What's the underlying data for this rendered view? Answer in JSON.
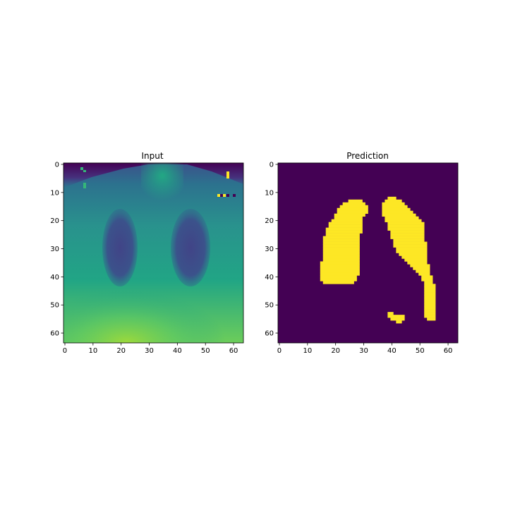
{
  "chart_data": [
    {
      "type": "heatmap",
      "title": "Input",
      "colormap": "viridis",
      "x_ticks": [
        0,
        10,
        20,
        30,
        40,
        50,
        60
      ],
      "y_ticks": [
        0,
        10,
        20,
        30,
        40,
        50,
        60
      ],
      "xlim": [
        -0.5,
        63.5
      ],
      "ylim": [
        63.5,
        -0.5
      ],
      "grid": false,
      "description_values": "64x64 grayscale chest X-ray intensity image rendered with viridis colormap"
    },
    {
      "type": "heatmap",
      "title": "Prediction",
      "colormap": "viridis",
      "x_ticks": [
        0,
        10,
        20,
        30,
        40,
        50,
        60
      ],
      "y_ticks": [
        0,
        10,
        20,
        30,
        40,
        50,
        60
      ],
      "xlim": [
        -0.5,
        63.5
      ],
      "ylim": [
        63.5,
        -0.5
      ],
      "grid": false,
      "mask_colors": {
        "background": "#440154",
        "foreground": "#fde725"
      },
      "regions": [
        {
          "name": "left-lung",
          "rows": [
            [
              13,
              25,
              29
            ],
            [
              14,
              23,
              30
            ],
            [
              15,
              22,
              31
            ],
            [
              16,
              21,
              31
            ],
            [
              17,
              21,
              31
            ],
            [
              18,
              20,
              30
            ],
            [
              19,
              20,
              29
            ],
            [
              20,
              19,
              29
            ],
            [
              21,
              18,
              29
            ],
            [
              22,
              18,
              29
            ],
            [
              23,
              17,
              29
            ],
            [
              24,
              17,
              29
            ],
            [
              25,
              17,
              28
            ],
            [
              26,
              16,
              28
            ],
            [
              27,
              16,
              28
            ],
            [
              28,
              16,
              28
            ],
            [
              29,
              16,
              28
            ],
            [
              30,
              16,
              28
            ],
            [
              31,
              16,
              28
            ],
            [
              32,
              16,
              28
            ],
            [
              33,
              16,
              28
            ],
            [
              34,
              16,
              28
            ],
            [
              35,
              15,
              28
            ],
            [
              36,
              15,
              28
            ],
            [
              37,
              15,
              28
            ],
            [
              38,
              15,
              28
            ],
            [
              39,
              15,
              28
            ],
            [
              40,
              15,
              27
            ],
            [
              41,
              15,
              27
            ],
            [
              42,
              16,
              26
            ]
          ]
        },
        {
          "name": "right-lung",
          "rows": [
            [
              12,
              39,
              41
            ],
            [
              13,
              38,
              43
            ],
            [
              14,
              37,
              44
            ],
            [
              15,
              37,
              45
            ],
            [
              16,
              37,
              46
            ],
            [
              17,
              37,
              47
            ],
            [
              18,
              37,
              48
            ],
            [
              19,
              38,
              49
            ],
            [
              20,
              38,
              50
            ],
            [
              21,
              39,
              51
            ],
            [
              22,
              39,
              51
            ],
            [
              23,
              39,
              51
            ],
            [
              24,
              40,
              51
            ],
            [
              25,
              40,
              51
            ],
            [
              26,
              40,
              51
            ],
            [
              27,
              41,
              51
            ],
            [
              28,
              41,
              52
            ],
            [
              29,
              41,
              52
            ],
            [
              30,
              42,
              52
            ],
            [
              31,
              42,
              52
            ],
            [
              32,
              43,
              52
            ],
            [
              33,
              44,
              52
            ],
            [
              34,
              45,
              52
            ],
            [
              35,
              46,
              52
            ],
            [
              36,
              47,
              53
            ],
            [
              37,
              48,
              53
            ],
            [
              38,
              49,
              53
            ],
            [
              39,
              50,
              53
            ],
            [
              40,
              51,
              54
            ],
            [
              41,
              51,
              54
            ],
            [
              42,
              52,
              54
            ],
            [
              43,
              52,
              55
            ],
            [
              44,
              52,
              55
            ],
            [
              45,
              52,
              55
            ],
            [
              46,
              52,
              55
            ],
            [
              47,
              52,
              55
            ],
            [
              48,
              52,
              55
            ],
            [
              49,
              52,
              55
            ],
            [
              50,
              52,
              55
            ],
            [
              51,
              52,
              55
            ],
            [
              52,
              52,
              55
            ],
            [
              53,
              52,
              55
            ],
            [
              54,
              52,
              55
            ],
            [
              55,
              53,
              55
            ]
          ]
        },
        {
          "name": "small-blob",
          "rows": [
            [
              53,
              39,
              40
            ],
            [
              54,
              39,
              44
            ],
            [
              55,
              40,
              44
            ],
            [
              56,
              42,
              43
            ]
          ]
        }
      ]
    }
  ]
}
